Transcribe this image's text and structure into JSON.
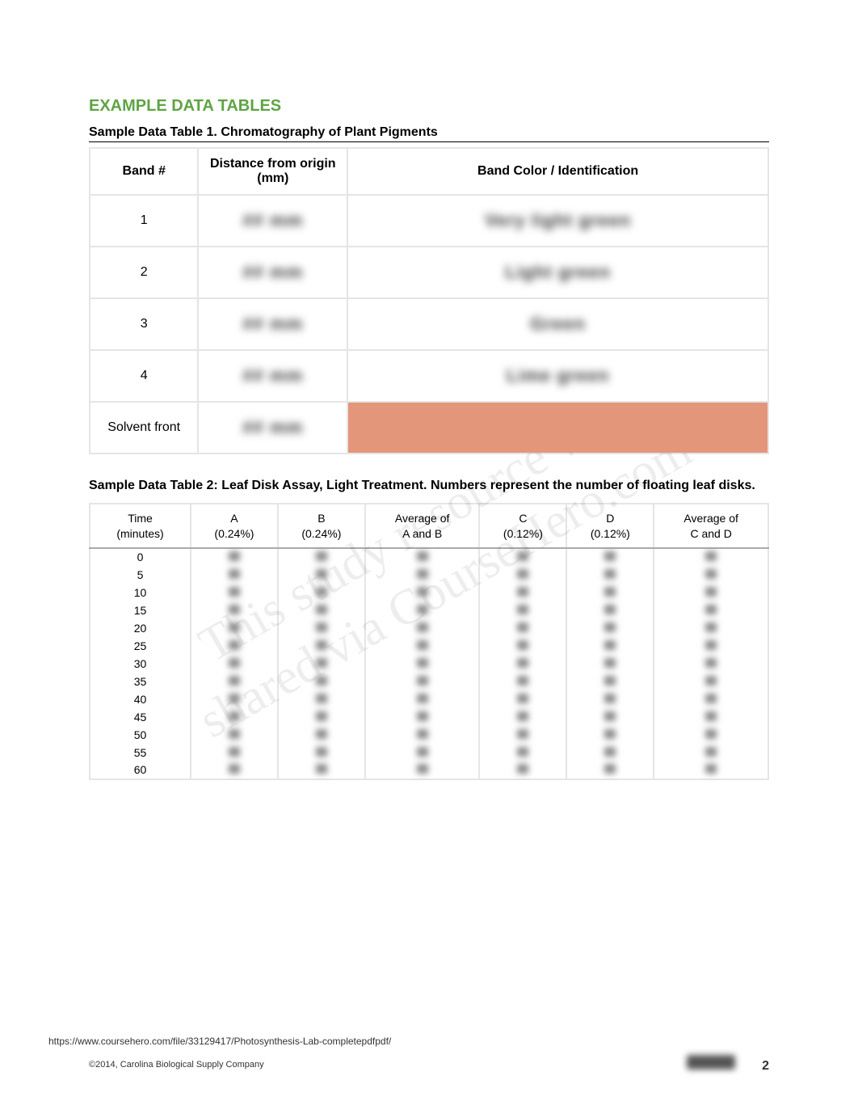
{
  "heading": {
    "text": "EXAMPLE DATA TABLES",
    "color": "#5fa444"
  },
  "table1": {
    "caption": "Sample Data Table 1. Chromatography of Plant Pigments",
    "headers": [
      "Band #",
      "Distance from origin (mm)",
      "Band Color / Identification"
    ],
    "rows": [
      {
        "band": "1"
      },
      {
        "band": "2"
      },
      {
        "band": "3"
      },
      {
        "band": "4"
      },
      {
        "band": "Solvent front",
        "color_cell_bg": "#e3967a"
      }
    ]
  },
  "table2": {
    "caption": "Sample Data Table 2: Leaf Disk Assay, Light Treatment. Numbers represent the number of floating leaf disks.",
    "headers": [
      {
        "l1": "Time",
        "l2": "(minutes)"
      },
      {
        "l1": "A",
        "l2": "(0.24%)"
      },
      {
        "l1": "B",
        "l2": "(0.24%)"
      },
      {
        "l1": "Average of",
        "l2": "A and B"
      },
      {
        "l1": "C",
        "l2": "(0.12%)"
      },
      {
        "l1": "D",
        "l2": "(0.12%)"
      },
      {
        "l1": "Average of",
        "l2": "C and D"
      }
    ],
    "times": [
      "0",
      "5",
      "10",
      "15",
      "20",
      "25",
      "30",
      "35",
      "40",
      "45",
      "50",
      "55",
      "60"
    ]
  },
  "watermark": {
    "line1": "This study resource was",
    "line2": "shared via CourseHero.com"
  },
  "footer": {
    "url": "https://www.coursehero.com/file/33129417/Photosynthesis-Lab-completepdfpdf/",
    "copyright": "©2014, Carolina Biological Supply Company",
    "page": "2"
  }
}
